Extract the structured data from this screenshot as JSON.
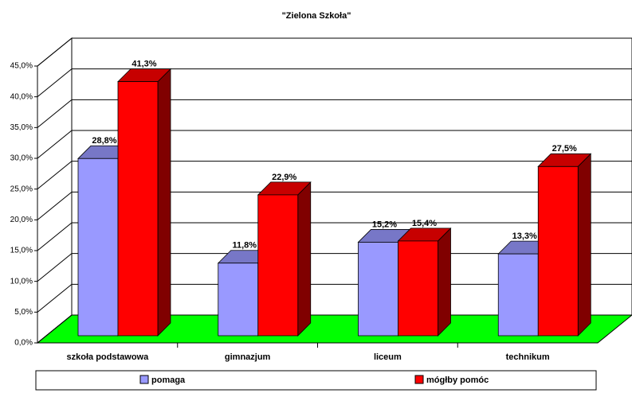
{
  "chart_data": {
    "type": "bar3d",
    "title": "\"Zielona Szkoła\"",
    "categories": [
      "szkoła podstawowa",
      "gimnazjum",
      "liceum",
      "technikum"
    ],
    "series": [
      {
        "name": "pomaga",
        "color": "#9999ff",
        "values": [
          28.8,
          11.8,
          15.2,
          13.3
        ],
        "value_labels": [
          "28,8%",
          "11,8%",
          "15,2%",
          "13,3%"
        ]
      },
      {
        "name": "mógłby pomóc",
        "color": "#ff0000",
        "values": [
          41.3,
          22.9,
          15.4,
          27.5
        ],
        "value_labels": [
          "41,3%",
          "22,9%",
          "15,4%",
          "27,5%"
        ]
      }
    ],
    "ylim": [
      0,
      45
    ],
    "yticks": [
      {
        "value": 0,
        "label": "0,0%"
      },
      {
        "value": 5,
        "label": "5,0%"
      },
      {
        "value": 10,
        "label": "10,0%"
      },
      {
        "value": 15,
        "label": "15,0%"
      },
      {
        "value": 20,
        "label": "20,0%"
      },
      {
        "value": 25,
        "label": "25,0%"
      },
      {
        "value": 30,
        "label": "30,0%"
      },
      {
        "value": 35,
        "label": "35,0%"
      },
      {
        "value": 40,
        "label": "40,0%"
      },
      {
        "value": 45,
        "label": "45,0%"
      }
    ],
    "grid": true,
    "floor_color": "#00ff00",
    "legend": "bottom"
  }
}
